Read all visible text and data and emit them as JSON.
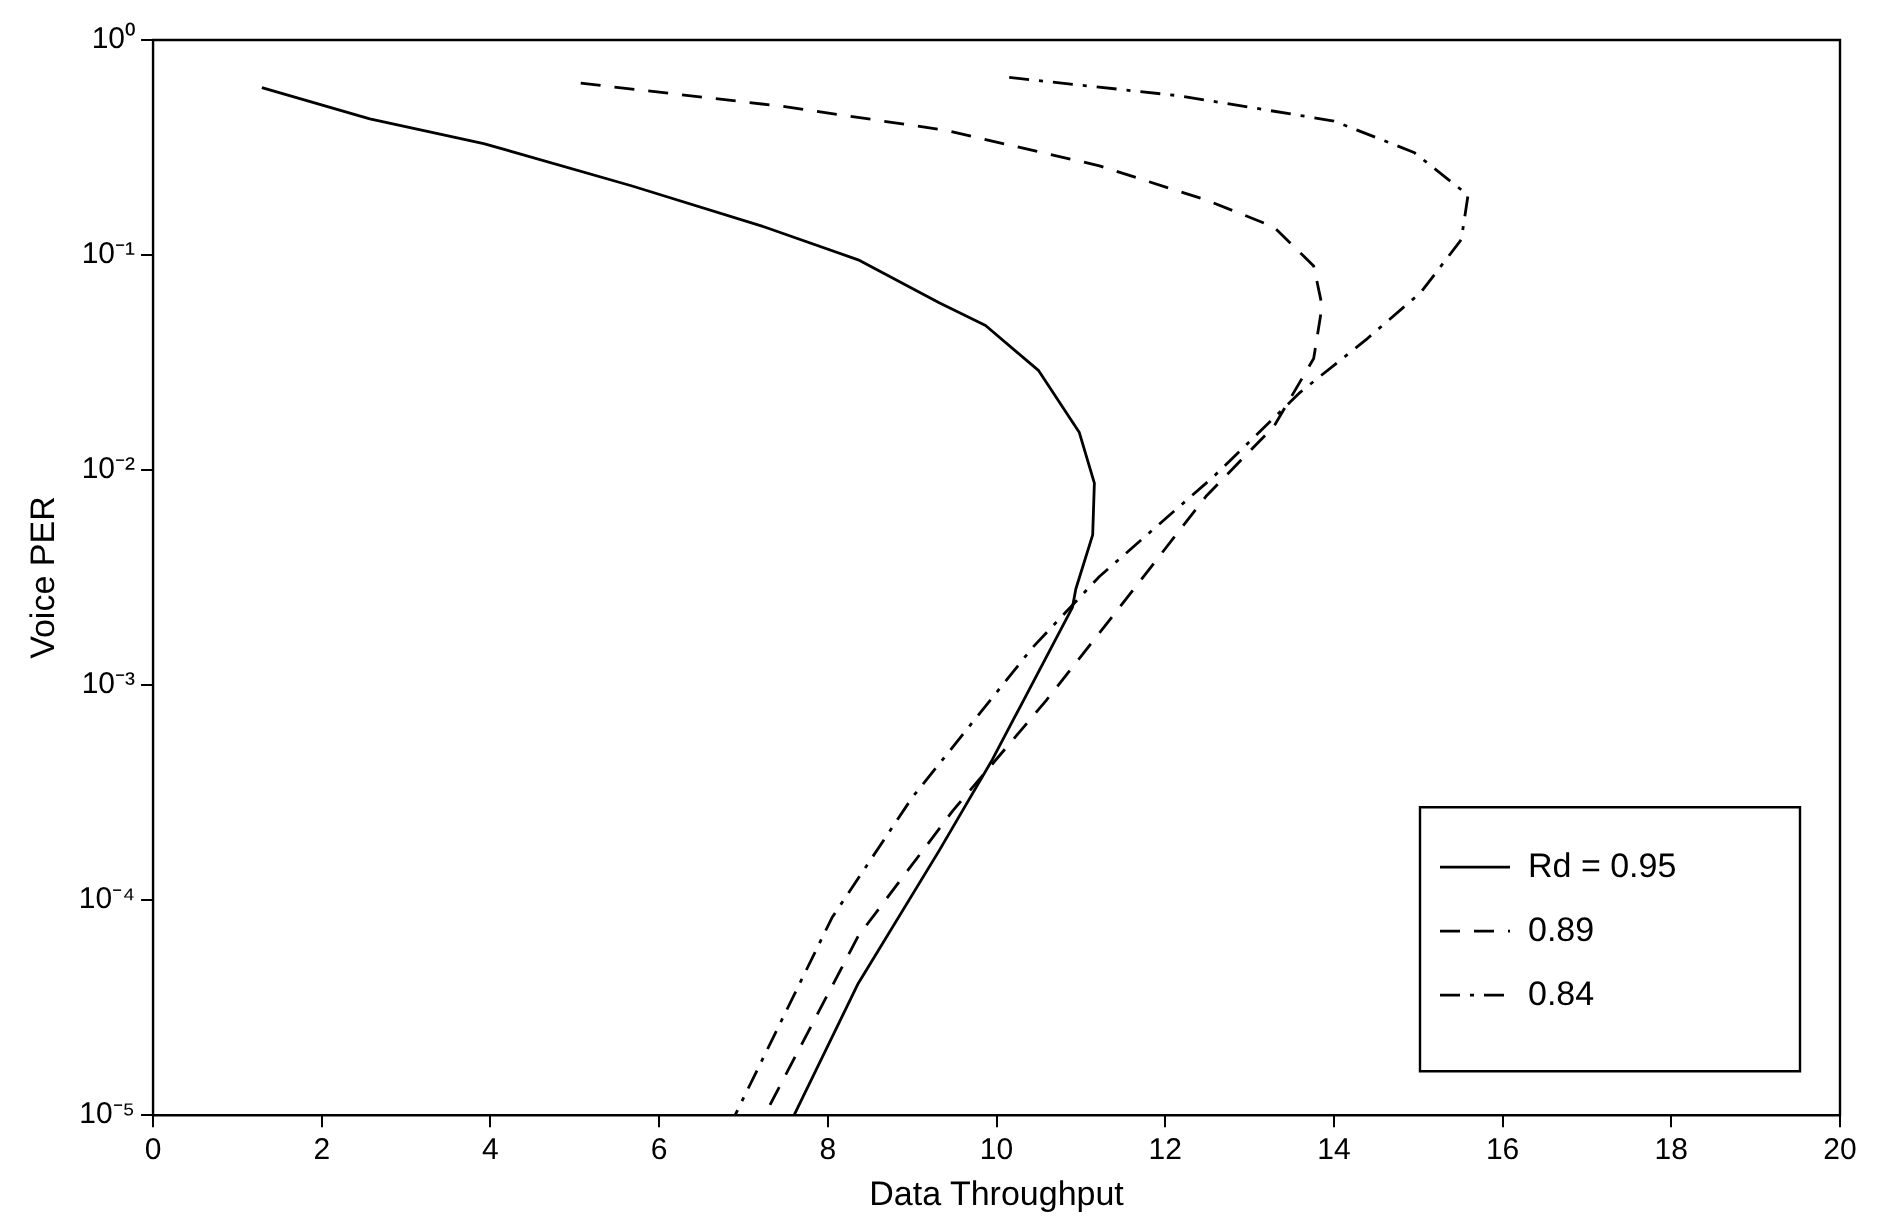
{
  "chart_data": {
    "type": "line",
    "xlabel": "Data Throughput",
    "ylabel": "Voice PER",
    "log": "y",
    "grid": false,
    "legend": "bottom right",
    "marker": "none",
    "xlim": [
      0,
      20
    ],
    "xticks": [
      0,
      2,
      4,
      6,
      8,
      10,
      12,
      14,
      16,
      18,
      20
    ],
    "ylim": [
      1e-05,
      1
    ],
    "yticks": [
      {
        "value": 1e-05,
        "label": "10⁻⁵"
      },
      {
        "value": 0.0001,
        "label": "10⁻⁴"
      },
      {
        "value": 0.001,
        "label": "10⁻³"
      },
      {
        "value": 0.01,
        "label": "10⁻²"
      },
      {
        "value": 0.1,
        "label": "10⁻¹"
      },
      {
        "value": 1,
        "label": "10⁰"
      }
    ],
    "series": [
      {
        "name": "Rd = 0.95",
        "color": "#000000",
        "line_style": "solid",
        "x": [
          1.29,
          2.57,
          3.92,
          5.67,
          7.25,
          8.36,
          9.32,
          9.87,
          10.5,
          10.98,
          11.16,
          11.14,
          10.94,
          10.9,
          9.95,
          9.32,
          8.36,
          7.6
        ],
        "values": [
          0.6,
          0.43,
          0.33,
          0.21,
          0.135,
          0.095,
          0.06,
          0.047,
          0.029,
          0.015,
          0.0087,
          0.005,
          0.0028,
          0.0023,
          0.00045,
          0.00017,
          4.1e-05,
          1e-05
        ]
      },
      {
        "name": "0.89",
        "color": "#000000",
        "line_style": "dashed",
        "x": [
          5.07,
          7.49,
          9.4,
          11.22,
          12.49,
          13.29,
          13.76,
          13.86,
          13.76,
          13.29,
          12.49,
          11.38,
          10.59,
          9.48,
          8.36,
          7.25
        ],
        "values": [
          0.63,
          0.49,
          0.38,
          0.26,
          0.18,
          0.135,
          0.089,
          0.058,
          0.033,
          0.016,
          0.0076,
          0.0021,
          0.00085,
          0.00026,
          6.8e-05,
          1e-05
        ]
      },
      {
        "name": "0.84",
        "color": "#000000",
        "line_style": "dashdot",
        "x": [
          10.15,
          12.17,
          14.0,
          14.95,
          15.59,
          15.51,
          15.03,
          14.4,
          13.6,
          12.57,
          11.22,
          10.43,
          9.0,
          8.05,
          6.9
        ],
        "values": [
          0.67,
          0.55,
          0.42,
          0.3,
          0.19,
          0.118,
          0.067,
          0.041,
          0.023,
          0.0093,
          0.0032,
          0.0015,
          0.0003,
          8.3e-05,
          1e-05
        ]
      }
    ]
  }
}
